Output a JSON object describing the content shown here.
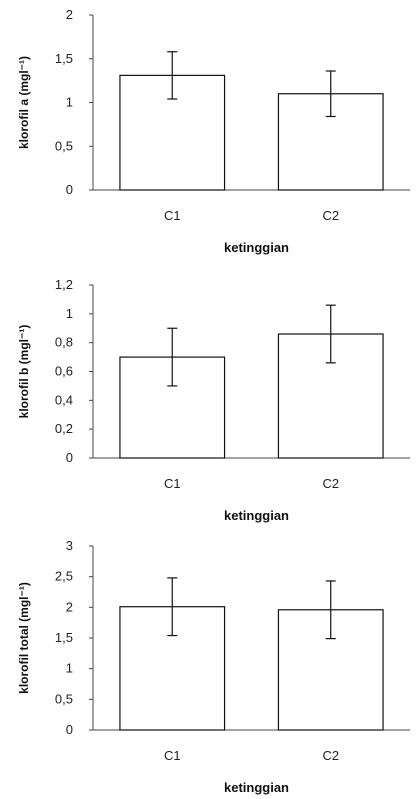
{
  "chart_data": [
    {
      "type": "bar",
      "categories": [
        "C1",
        "C2"
      ],
      "values": [
        1.31,
        1.1
      ],
      "errors": [
        0.27,
        0.26
      ],
      "xlabel": "ketinggian",
      "ylabel": "klorofil a (mgl⁻¹)",
      "ylim": [
        0,
        2
      ],
      "yticks": [
        "0",
        "0,5",
        "1",
        "1,5",
        "2"
      ],
      "grid": false
    },
    {
      "type": "bar",
      "categories": [
        "C1",
        "C2"
      ],
      "values": [
        0.7,
        0.86
      ],
      "errors": [
        0.2,
        0.2
      ],
      "xlabel": "ketinggian",
      "ylabel": "klorofil b (mgl⁻¹)",
      "ylim": [
        0,
        1.2
      ],
      "yticks": [
        "0",
        "0,2",
        "0,4",
        "0,6",
        "0,8",
        "1",
        "1,2"
      ],
      "grid": false
    },
    {
      "type": "bar",
      "categories": [
        "C1",
        "C2"
      ],
      "values": [
        2.01,
        1.96
      ],
      "errors": [
        0.47,
        0.47
      ],
      "xlabel": "ketinggian",
      "ylabel": "klorofil total (mgl⁻¹)",
      "ylim": [
        0,
        3
      ],
      "yticks": [
        "0",
        "0,5",
        "1",
        "1,5",
        "2",
        "2,5",
        "3"
      ],
      "grid": false
    }
  ]
}
